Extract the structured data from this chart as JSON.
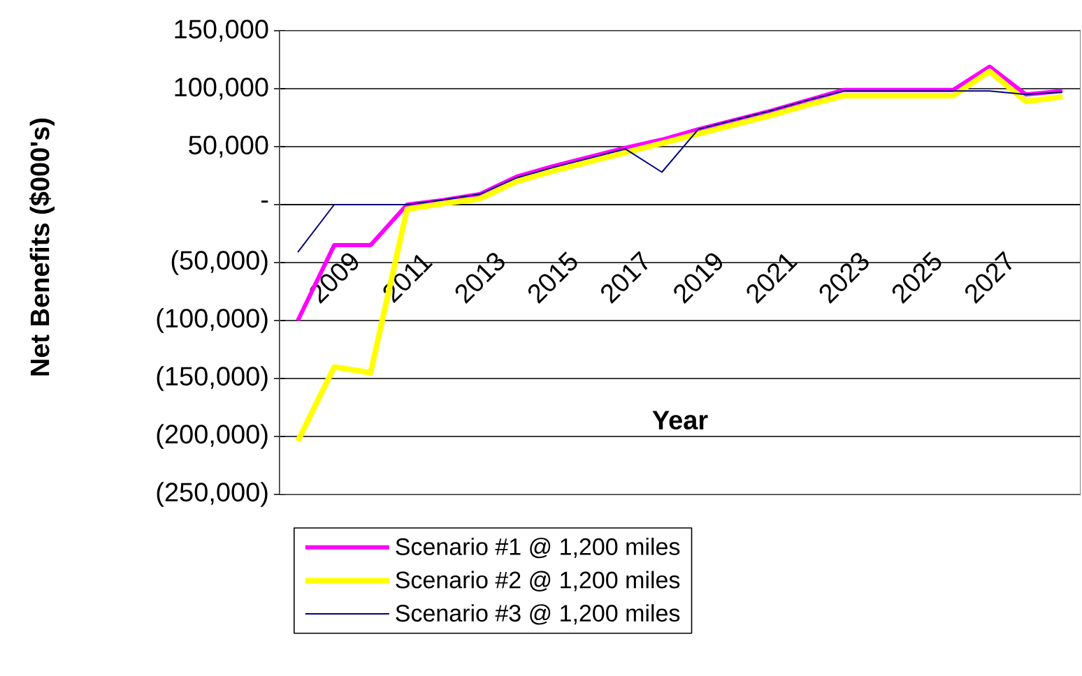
{
  "chart_data": {
    "type": "line",
    "xlabel": "Year",
    "ylabel": "Net Benefits ($000's)",
    "categories": [
      null,
      "2009",
      null,
      "2011",
      null,
      "2013",
      null,
      "2015",
      null,
      "2017",
      null,
      "2019",
      null,
      "2021",
      null,
      "2023",
      null,
      "2025",
      null,
      "2027",
      null,
      null
    ],
    "series": [
      {
        "name": "Scenario #1 @ 1,200 miles",
        "color": "#ff00ff",
        "values": [
          -100000,
          -35000,
          -35000,
          0,
          4000,
          9000,
          24000,
          33000,
          41000,
          49000,
          56000,
          65000,
          73000,
          81000,
          90000,
          99000,
          99000,
          99000,
          99000,
          119000,
          95000,
          98000
        ]
      },
      {
        "name": "Scenario #2 @ 1,200 miles",
        "color": "#ffff00",
        "values": [
          -204000,
          -140000,
          -145000,
          -4000,
          1000,
          5000,
          20000,
          29000,
          37000,
          45000,
          53000,
          61000,
          69000,
          77000,
          86000,
          94000,
          94000,
          94000,
          94000,
          115000,
          89000,
          93000
        ]
      },
      {
        "name": "Scenario #3 @ 1,200 miles",
        "color": "#000080",
        "values": [
          -41000,
          0,
          0,
          0,
          4000,
          9000,
          23000,
          32000,
          40000,
          48000,
          28000,
          65000,
          73000,
          81000,
          90000,
          98000,
          98000,
          98000,
          98000,
          98000,
          95000,
          97000
        ]
      }
    ],
    "ylim": [
      -250000,
      150000
    ],
    "yticks": [
      {
        "value": -250000,
        "label": "(250,000)"
      },
      {
        "value": -200000,
        "label": "(200,000)"
      },
      {
        "value": -150000,
        "label": "(150,000)"
      },
      {
        "value": -100000,
        "label": "(100,000)"
      },
      {
        "value": -50000,
        "label": "(50,000)"
      },
      {
        "value": 0,
        "label": "-"
      },
      {
        "value": 50000,
        "label": "50,000"
      },
      {
        "value": 100000,
        "label": "100,000"
      },
      {
        "value": 150000,
        "label": "150,000"
      }
    ],
    "grid": "y",
    "legend": "bottom",
    "marker": "none",
    "line_style": "solid"
  }
}
